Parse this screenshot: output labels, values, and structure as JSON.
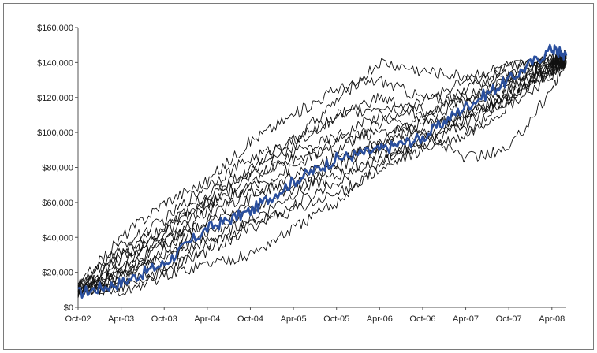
{
  "chart_data": {
    "type": "line",
    "title": "",
    "xlabel": "",
    "ylabel": "",
    "x_tick_labels": [
      "Oct-02",
      "Apr-03",
      "Oct-03",
      "Apr-04",
      "Oct-04",
      "Apr-05",
      "Oct-05",
      "Apr-06",
      "Oct-06",
      "Apr-07",
      "Oct-07",
      "Apr-08"
    ],
    "y_tick_labels": [
      "$0",
      "$20,000",
      "$40,000",
      "$60,000",
      "$80,000",
      "$100,000",
      "$120,000",
      "$140,000",
      "$160,000"
    ],
    "ylim": [
      0,
      160000
    ],
    "xlim": [
      "2002-10",
      "2008-06"
    ],
    "grid": false,
    "legend": "none",
    "colors": {
      "highlight": "#2a4f9e",
      "paths": "#111111",
      "axis": "#555555"
    },
    "series": [
      {
        "highlight": true,
        "x": [
          "2002-10",
          "2003-04",
          "2003-10",
          "2004-04",
          "2004-10",
          "2005-04",
          "2005-10",
          "2006-04",
          "2006-10",
          "2007-04",
          "2007-10",
          "2008-04",
          "2008-06"
        ],
        "values": [
          8000,
          14000,
          25000,
          45000,
          55000,
          72000,
          85000,
          90000,
          97000,
          115000,
          130000,
          148000,
          144000
        ]
      },
      {
        "x": [
          "2002-10",
          "2003-04",
          "2003-10",
          "2004-04",
          "2004-10",
          "2005-04",
          "2005-10",
          "2006-04",
          "2006-10",
          "2007-04",
          "2007-10",
          "2008-04",
          "2008-06"
        ],
        "values": [
          10000,
          35000,
          50000,
          70000,
          85000,
          95000,
          118000,
          140000,
          135000,
          132000,
          138000,
          140000,
          143000
        ]
      },
      {
        "x": [
          "2002-10",
          "2003-04",
          "2003-10",
          "2004-04",
          "2004-10",
          "2005-04",
          "2005-10",
          "2006-04",
          "2006-10",
          "2007-04",
          "2007-10",
          "2008-04",
          "2008-06"
        ],
        "values": [
          12000,
          40000,
          60000,
          72000,
          95000,
          110000,
          125000,
          130000,
          120000,
          118000,
          130000,
          138000,
          142000
        ]
      },
      {
        "x": [
          "2002-10",
          "2003-04",
          "2003-10",
          "2004-04",
          "2004-10",
          "2005-04",
          "2005-10",
          "2006-04",
          "2006-10",
          "2007-04",
          "2007-10",
          "2008-04",
          "2008-06"
        ],
        "values": [
          8000,
          20000,
          45000,
          65000,
          78000,
          92000,
          110000,
          120000,
          112000,
          100000,
          120000,
          135000,
          140000
        ]
      },
      {
        "x": [
          "2002-10",
          "2003-04",
          "2003-10",
          "2004-04",
          "2004-10",
          "2005-04",
          "2005-10",
          "2006-04",
          "2006-10",
          "2007-04",
          "2007-10",
          "2008-04",
          "2008-06"
        ],
        "values": [
          10000,
          22000,
          35000,
          55000,
          70000,
          88000,
          98000,
          110000,
          100000,
          85000,
          90000,
          125000,
          141000
        ]
      },
      {
        "x": [
          "2002-10",
          "2003-04",
          "2003-10",
          "2004-04",
          "2004-10",
          "2005-04",
          "2005-10",
          "2006-04",
          "2006-10",
          "2007-04",
          "2007-10",
          "2008-04",
          "2008-06"
        ],
        "values": [
          9000,
          30000,
          42000,
          60000,
          68000,
          80000,
          95000,
          100000,
          105000,
          110000,
          118000,
          140000,
          145000
        ]
      },
      {
        "x": [
          "2002-10",
          "2003-04",
          "2003-10",
          "2004-04",
          "2004-10",
          "2005-04",
          "2005-10",
          "2006-04",
          "2006-10",
          "2007-04",
          "2007-10",
          "2008-04",
          "2008-06"
        ],
        "values": [
          11000,
          18000,
          28000,
          38000,
          50000,
          65000,
          75000,
          88000,
          92000,
          105000,
          125000,
          136000,
          143000
        ]
      },
      {
        "x": [
          "2002-10",
          "2003-04",
          "2003-10",
          "2004-04",
          "2004-10",
          "2005-04",
          "2005-10",
          "2006-04",
          "2006-10",
          "2007-04",
          "2007-10",
          "2008-04",
          "2008-06"
        ],
        "values": [
          8000,
          15000,
          22000,
          32000,
          45000,
          58000,
          72000,
          85000,
          95000,
          108000,
          122000,
          138000,
          142000
        ]
      },
      {
        "x": [
          "2002-10",
          "2003-04",
          "2003-10",
          "2004-04",
          "2004-10",
          "2005-04",
          "2005-10",
          "2006-04",
          "2006-10",
          "2007-04",
          "2007-10",
          "2008-04",
          "2008-06"
        ],
        "values": [
          12000,
          8000,
          18000,
          25000,
          30000,
          45000,
          60000,
          82000,
          95000,
          110000,
          120000,
          135000,
          140000
        ]
      },
      {
        "x": [
          "2002-10",
          "2003-04",
          "2003-10",
          "2004-04",
          "2004-10",
          "2005-04",
          "2005-10",
          "2006-04",
          "2006-10",
          "2007-04",
          "2007-10",
          "2008-04",
          "2008-06"
        ],
        "values": [
          10000,
          25000,
          38000,
          48000,
          62000,
          75000,
          86000,
          92000,
          100000,
          112000,
          128000,
          140000,
          144000
        ]
      },
      {
        "x": [
          "2002-10",
          "2003-04",
          "2003-10",
          "2004-04",
          "2004-10",
          "2005-04",
          "2005-10",
          "2006-04",
          "2006-10",
          "2007-04",
          "2007-10",
          "2008-04",
          "2008-06"
        ],
        "values": [
          9000,
          12000,
          20000,
          35000,
          48000,
          55000,
          65000,
          78000,
          90000,
          98000,
          115000,
          132000,
          141000
        ]
      },
      {
        "x": [
          "2002-10",
          "2003-04",
          "2003-10",
          "2004-04",
          "2004-10",
          "2005-04",
          "2005-10",
          "2006-04",
          "2006-10",
          "2007-04",
          "2007-10",
          "2008-04",
          "2008-06"
        ],
        "values": [
          10000,
          28000,
          40000,
          58000,
          75000,
          85000,
          90000,
          105000,
          118000,
          130000,
          135000,
          142000,
          144000
        ]
      },
      {
        "x": [
          "2002-10",
          "2003-04",
          "2003-10",
          "2004-04",
          "2004-10",
          "2005-04",
          "2005-10",
          "2006-04",
          "2006-10",
          "2007-04",
          "2007-10",
          "2008-04",
          "2008-06"
        ],
        "values": [
          8000,
          18000,
          33000,
          50000,
          66000,
          70000,
          82000,
          95000,
          110000,
          125000,
          132000,
          140000,
          143000
        ]
      },
      {
        "x": [
          "2002-10",
          "2003-04",
          "2003-10",
          "2004-04",
          "2004-10",
          "2005-04",
          "2005-10",
          "2006-04",
          "2006-10",
          "2007-04",
          "2007-10",
          "2008-04",
          "2008-06"
        ],
        "values": [
          12000,
          32000,
          45000,
          62000,
          80000,
          96000,
          108000,
          115000,
          110000,
          120000,
          138000,
          141000,
          142000
        ]
      },
      {
        "x": [
          "2002-10",
          "2003-04",
          "2003-10",
          "2004-04",
          "2004-10",
          "2005-04",
          "2005-10",
          "2006-04",
          "2006-10",
          "2007-04",
          "2007-10",
          "2008-04",
          "2008-06"
        ],
        "values": [
          9000,
          20000,
          30000,
          42000,
          56000,
          68000,
          80000,
          92000,
          104000,
          118000,
          130000,
          138000,
          141000
        ]
      }
    ]
  }
}
